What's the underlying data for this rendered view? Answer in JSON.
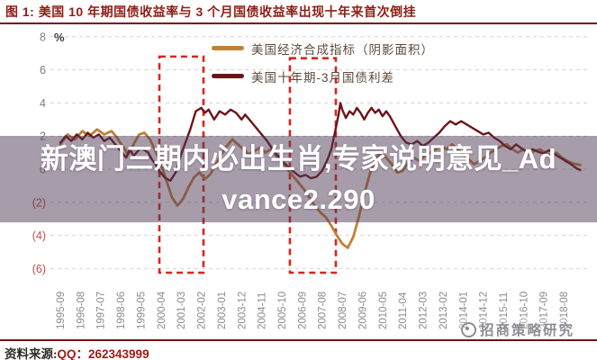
{
  "header": {
    "title": "图 1:  美国 10 年期国债收益率与 3 个月国债收益率出现十年来首次倒挂"
  },
  "chart_data": {
    "type": "line",
    "unit_label": "%",
    "ylim": [
      -6.5,
      8
    ],
    "grid": true,
    "y_ticks": [
      {
        "label": "8",
        "value": 8
      },
      {
        "label": "6",
        "value": 6
      },
      {
        "label": "4",
        "value": 4
      },
      {
        "label": "2",
        "value": 2
      },
      {
        "label": "0",
        "value": 0
      },
      {
        "label": "(2)",
        "value": -2
      },
      {
        "label": "(4)",
        "value": -4
      },
      {
        "label": "(6)",
        "value": -6
      }
    ],
    "x_ticks": [
      "1995-09",
      "1996-08",
      "1997-07",
      "1998-06",
      "1999-05",
      "2000-04",
      "2001-03",
      "2002-02",
      "2003-01",
      "2003-12",
      "2004-11",
      "2005-10",
      "2006-09",
      "2007-08",
      "2008-07",
      "2009-06",
      "2010-05",
      "2011-04",
      "2012-03",
      "2013-02",
      "2014-01",
      "2014-12",
      "2015-11",
      "2016-10",
      "2017-09",
      "2018-08"
    ],
    "x_tick_interval_months": 11,
    "x_start": "1995-09",
    "legend_position": "top-right-inside",
    "legend": [
      {
        "label": "美国经济合成指标（阴影面积）",
        "color": "#BF8136"
      },
      {
        "label": "美国十年期-3月国债利差",
        "color": "#6E1418"
      }
    ],
    "highlight_boxes": [
      {
        "start_month": 54.1,
        "end_month": 78.2,
        "top_value": 6.8,
        "bottom_value": -6.25
      },
      {
        "start_month": 125.4,
        "end_month": 150.5,
        "top_value": 6.7,
        "bottom_value": -6.25
      }
    ],
    "colors": {
      "grid": "#D2D2D2",
      "tick_positive": "#7F7F7F",
      "tick_negative": "#C0504D",
      "axis_label": "#8C8C8C",
      "highlight_box": "#D9251D"
    },
    "series": [
      {
        "name": "美国经济合成指标（阴影面积）",
        "color": "#BF8136",
        "width": 2.8,
        "points": [
          [
            0,
            1.5
          ],
          [
            4,
            2.1
          ],
          [
            8,
            1.8
          ],
          [
            12,
            2.3
          ],
          [
            16,
            2.0
          ],
          [
            20,
            2.4
          ],
          [
            24,
            2.1
          ],
          [
            28,
            2.3
          ],
          [
            31,
            1.9
          ],
          [
            34,
            1.4
          ],
          [
            37,
            0.9
          ],
          [
            40,
            1.5
          ],
          [
            43,
            2.1
          ],
          [
            46,
            2.2
          ],
          [
            49,
            1.8
          ],
          [
            52,
            1.1
          ],
          [
            55,
            0.3
          ],
          [
            58,
            -0.7
          ],
          [
            61,
            -1.7
          ],
          [
            64,
            -2.2
          ],
          [
            67,
            -1.8
          ],
          [
            70,
            -1.1
          ],
          [
            73,
            -0.5
          ],
          [
            76,
            -0.2
          ],
          [
            79,
            -0.6
          ],
          [
            82,
            -0.3
          ],
          [
            85,
            0.3
          ],
          [
            88,
            0.9
          ],
          [
            91,
            1.4
          ],
          [
            94,
            1.8
          ],
          [
            97,
            1.5
          ],
          [
            100,
            1.2
          ],
          [
            103,
            0.9
          ],
          [
            106,
            1.1
          ],
          [
            109,
            1.3
          ],
          [
            112,
            1.0
          ],
          [
            115,
            1.2
          ],
          [
            118,
            0.8
          ],
          [
            121,
            0.4
          ],
          [
            124,
            0.0
          ],
          [
            127,
            -0.4
          ],
          [
            130,
            -0.8
          ],
          [
            133,
            -1.2
          ],
          [
            136,
            -1.7
          ],
          [
            139,
            -2.2
          ],
          [
            142,
            -2.6
          ],
          [
            145,
            -2.9
          ],
          [
            148,
            -3.4
          ],
          [
            151,
            -4.0
          ],
          [
            154,
            -4.5
          ],
          [
            157,
            -4.75
          ],
          [
            160,
            -4.1
          ],
          [
            163,
            -2.9
          ],
          [
            166,
            -1.5
          ],
          [
            169,
            -0.3
          ],
          [
            172,
            0.6
          ],
          [
            175,
            1.0
          ],
          [
            178,
            0.7
          ],
          [
            181,
            0.3
          ],
          [
            184,
            -0.2
          ],
          [
            187,
            -0.1
          ],
          [
            190,
            0.4
          ],
          [
            193,
            0.7
          ],
          [
            196,
            0.5
          ],
          [
            199,
            0.8
          ],
          [
            202,
            1.0
          ],
          [
            205,
            1.2
          ],
          [
            208,
            1.4
          ],
          [
            211,
            1.2
          ],
          [
            214,
            1.5
          ],
          [
            217,
            1.2
          ],
          [
            220,
            0.9
          ],
          [
            223,
            0.6
          ],
          [
            226,
            0.3
          ],
          [
            229,
            0.5
          ],
          [
            232,
            0.7
          ],
          [
            235,
            1.0
          ],
          [
            238,
            1.2
          ],
          [
            241,
            1.4
          ],
          [
            244,
            1.5
          ],
          [
            247,
            1.2
          ],
          [
            250,
            1.0
          ],
          [
            253,
            1.2
          ],
          [
            256,
            0.9
          ],
          [
            259,
            1.1
          ],
          [
            262,
            1.2
          ],
          [
            265,
            1.0
          ],
          [
            268,
            0.8
          ],
          [
            271,
            1.0
          ],
          [
            274,
            0.7
          ],
          [
            277,
            0.5
          ],
          [
            280,
            0.35
          ],
          [
            284,
            0.25
          ]
        ]
      },
      {
        "name": "美国十年期-3月国债利差",
        "color": "#6E1418",
        "width": 2.4,
        "points": [
          [
            0,
            1.6
          ],
          [
            3,
            2.0
          ],
          [
            6,
            1.7
          ],
          [
            9,
            2.1
          ],
          [
            12,
            1.8
          ],
          [
            15,
            2.2
          ],
          [
            18,
            1.9
          ],
          [
            21,
            2.1
          ],
          [
            24,
            1.7
          ],
          [
            27,
            1.9
          ],
          [
            30,
            1.5
          ],
          [
            33,
            1.1
          ],
          [
            36,
            0.7
          ],
          [
            38,
            1.2
          ],
          [
            40,
            0.8
          ],
          [
            44,
            1.3
          ],
          [
            48,
            1.0
          ],
          [
            50,
            0.6
          ],
          [
            52,
            0.3
          ],
          [
            54,
            -0.1
          ],
          [
            57,
            -0.5
          ],
          [
            60,
            -0.7
          ],
          [
            63,
            -0.2
          ],
          [
            66,
            0.9
          ],
          [
            68,
            1.5
          ],
          [
            71,
            2.4
          ],
          [
            74,
            3.5
          ],
          [
            77,
            3.7
          ],
          [
            79,
            3.4
          ],
          [
            81,
            3.6
          ],
          [
            84,
            3.0
          ],
          [
            87,
            3.5
          ],
          [
            90,
            3.3
          ],
          [
            93,
            3.6
          ],
          [
            96,
            3.4
          ],
          [
            99,
            3.0
          ],
          [
            101,
            3.3
          ],
          [
            104,
            2.9
          ],
          [
            107,
            2.5
          ],
          [
            110,
            2.1
          ],
          [
            113,
            1.7
          ],
          [
            116,
            1.2
          ],
          [
            119,
            0.8
          ],
          [
            122,
            0.4
          ],
          [
            125,
            0.1
          ],
          [
            128,
            -0.2
          ],
          [
            131,
            -0.45
          ],
          [
            134,
            -0.35
          ],
          [
            137,
            -0.55
          ],
          [
            140,
            -0.45
          ],
          [
            143,
            -0.1
          ],
          [
            146,
            0.6
          ],
          [
            148,
            1.2
          ],
          [
            150,
            2.2
          ],
          [
            152,
            3.3
          ],
          [
            153,
            4.0
          ],
          [
            154,
            3.6
          ],
          [
            156,
            3.1
          ],
          [
            158,
            3.5
          ],
          [
            160,
            3.3
          ],
          [
            162,
            3.7
          ],
          [
            164,
            3.4
          ],
          [
            166,
            3.0
          ],
          [
            168,
            3.4
          ],
          [
            170,
            3.7
          ],
          [
            172,
            3.4
          ],
          [
            174,
            3.6
          ],
          [
            176,
            3.2
          ],
          [
            178,
            3.5
          ],
          [
            180,
            3.2
          ],
          [
            183,
            2.6
          ],
          [
            186,
            2.0
          ],
          [
            189,
            1.6
          ],
          [
            192,
            1.5
          ],
          [
            195,
            1.7
          ],
          [
            198,
            1.4
          ],
          [
            201,
            1.6
          ],
          [
            204,
            1.9
          ],
          [
            207,
            2.2
          ],
          [
            210,
            2.6
          ],
          [
            213,
            2.9
          ],
          [
            216,
            2.7
          ],
          [
            219,
            2.9
          ],
          [
            222,
            2.7
          ],
          [
            225,
            2.5
          ],
          [
            228,
            2.3
          ],
          [
            231,
            2.1
          ],
          [
            234,
            2.2
          ],
          [
            237,
            1.9
          ],
          [
            240,
            1.7
          ],
          [
            243,
            1.4
          ],
          [
            246,
            1.2
          ],
          [
            249,
            1.5
          ],
          [
            252,
            1.25
          ],
          [
            255,
            1.05
          ],
          [
            258,
            1.2
          ],
          [
            261,
            1.05
          ],
          [
            264,
            0.95
          ],
          [
            267,
            1.15
          ],
          [
            270,
            0.9
          ],
          [
            273,
            0.7
          ],
          [
            276,
            0.5
          ],
          [
            279,
            0.3
          ],
          [
            282,
            0.05
          ],
          [
            284,
            -0.05
          ]
        ]
      }
    ]
  },
  "overlay": {
    "lines": [
      "新澳门三期内必出生肖,专家说明意见_Ad",
      "vance2.290"
    ]
  },
  "footer": {
    "source_prefix": "资料来源:",
    "source_value": "QQ：262343999"
  },
  "watermark": {
    "text": "招商策略研究"
  }
}
